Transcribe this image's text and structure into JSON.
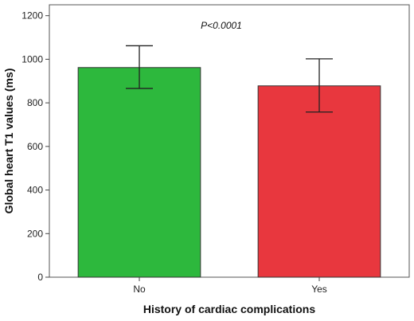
{
  "chart_data": {
    "type": "bar",
    "categories": [
      "No",
      "Yes"
    ],
    "values": [
      962,
      878
    ],
    "error_low": [
      866,
      758
    ],
    "error_high": [
      1062,
      1002
    ],
    "bar_colors": [
      "#2db83d",
      "#e8373e"
    ],
    "xlabel": "History of cardiac complications",
    "ylabel": "Global heart T1 values (ms)",
    "ylim": [
      0,
      1250
    ],
    "yticks": [
      0,
      200,
      400,
      600,
      800,
      1000,
      1200
    ],
    "annotation": "P<0.0001",
    "grid": false
  }
}
